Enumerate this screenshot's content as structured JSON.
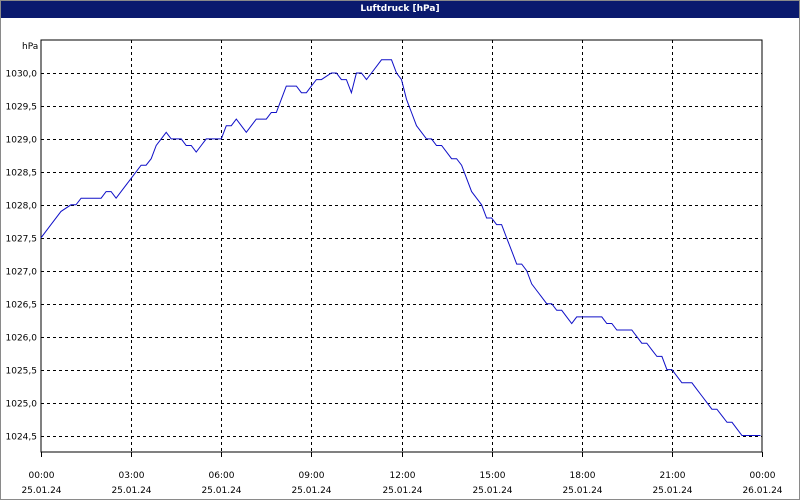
{
  "window": {
    "title": "Luftdruck [hPa]"
  },
  "chart_data": {
    "type": "line",
    "title": "Luftdruck [hPa]",
    "ylabel": "hPa",
    "xlabel": "",
    "ylim": [
      1024.25,
      1030.5
    ],
    "yticks": [
      1024.5,
      1025.0,
      1025.5,
      1026.0,
      1026.5,
      1027.0,
      1027.5,
      1028.0,
      1028.5,
      1029.0,
      1029.5,
      1030.0
    ],
    "ytick_labels": [
      "1024,5",
      "1025,0",
      "1025,5",
      "1026,0",
      "1026,5",
      "1027,0",
      "1027,5",
      "1028,0",
      "1028,5",
      "1029,0",
      "1029,5",
      "1030,0"
    ],
    "xlim": [
      "25.01.24 00:00",
      "26.01.24 00:00"
    ],
    "xticks": [
      {
        "time": "00:00",
        "date": "25.01.24"
      },
      {
        "time": "03:00",
        "date": "25.01.24"
      },
      {
        "time": "06:00",
        "date": "25.01.24"
      },
      {
        "time": "09:00",
        "date": "25.01.24"
      },
      {
        "time": "12:00",
        "date": "25.01.24"
      },
      {
        "time": "15:00",
        "date": "25.01.24"
      },
      {
        "time": "18:00",
        "date": "25.01.24"
      },
      {
        "time": "21:00",
        "date": "25.01.24"
      },
      {
        "time": "00:00",
        "date": "26.01.24"
      }
    ],
    "grid": true,
    "line_color": "#1010c8",
    "series": [
      {
        "x": [
          "00:00",
          "00:20",
          "00:40",
          "01:00",
          "01:10",
          "01:20",
          "01:40",
          "02:00",
          "02:10",
          "02:20",
          "02:30",
          "02:40",
          "03:00",
          "03:20",
          "03:30",
          "03:40",
          "03:50",
          "04:00",
          "04:10",
          "04:20",
          "04:40",
          "04:50",
          "05:00",
          "05:10",
          "05:20",
          "05:30",
          "05:40",
          "06:00",
          "06:10",
          "06:20",
          "06:30",
          "06:40",
          "06:50",
          "07:00",
          "07:10",
          "07:20",
          "07:30",
          "07:40",
          "07:50",
          "08:00",
          "08:10",
          "08:20",
          "08:30",
          "08:40",
          "08:50",
          "09:00",
          "09:10",
          "09:20",
          "09:40",
          "09:50",
          "10:00",
          "10:10",
          "10:20",
          "10:30",
          "10:40",
          "10:50",
          "11:00",
          "11:10",
          "11:20",
          "11:30",
          "11:40",
          "11:50",
          "12:00",
          "12:10",
          "12:20",
          "12:30",
          "12:40",
          "12:50",
          "13:00",
          "13:10",
          "13:20",
          "13:30",
          "13:40",
          "13:50",
          "14:00",
          "14:10",
          "14:20",
          "14:30",
          "14:40",
          "14:50",
          "15:00",
          "15:10",
          "15:20",
          "15:30",
          "15:40",
          "15:50",
          "16:00",
          "16:10",
          "16:20",
          "16:30",
          "16:40",
          "16:50",
          "17:00",
          "17:10",
          "17:20",
          "17:30",
          "17:40",
          "17:50",
          "18:00",
          "18:10",
          "18:20",
          "18:30",
          "18:40",
          "18:50",
          "19:00",
          "19:10",
          "19:20",
          "19:30",
          "19:40",
          "19:50",
          "20:00",
          "20:10",
          "20:20",
          "20:30",
          "20:40",
          "20:50",
          "21:00",
          "21:10",
          "21:20",
          "21:30",
          "21:40",
          "21:50",
          "22:00",
          "22:10",
          "22:20",
          "22:30",
          "22:40",
          "22:50",
          "23:00",
          "23:10",
          "23:20",
          "23:30",
          "23:40",
          "23:50"
        ],
        "values": [
          1027.5,
          1027.7,
          1027.9,
          1028.0,
          1028.0,
          1028.1,
          1028.1,
          1028.1,
          1028.2,
          1028.2,
          1028.1,
          1028.2,
          1028.4,
          1028.6,
          1028.6,
          1028.7,
          1028.9,
          1029.0,
          1029.1,
          1029.0,
          1029.0,
          1028.9,
          1028.9,
          1028.8,
          1028.9,
          1029.0,
          1029.0,
          1029.0,
          1029.2,
          1029.2,
          1029.3,
          1029.2,
          1029.1,
          1029.2,
          1029.3,
          1029.3,
          1029.3,
          1029.4,
          1029.4,
          1029.6,
          1029.8,
          1029.8,
          1029.8,
          1029.7,
          1029.7,
          1029.8,
          1029.9,
          1029.9,
          1030.0,
          1030.0,
          1029.9,
          1029.9,
          1029.7,
          1030.0,
          1030.0,
          1029.9,
          1030.0,
          1030.1,
          1030.2,
          1030.2,
          1030.2,
          1030.0,
          1029.9,
          1029.6,
          1029.4,
          1029.2,
          1029.1,
          1029.0,
          1029.0,
          1028.9,
          1028.9,
          1028.8,
          1028.7,
          1028.7,
          1028.6,
          1028.4,
          1028.2,
          1028.1,
          1028.0,
          1027.8,
          1027.8,
          1027.7,
          1027.7,
          1027.5,
          1027.3,
          1027.1,
          1027.1,
          1027.0,
          1026.8,
          1026.7,
          1026.6,
          1026.5,
          1026.5,
          1026.4,
          1026.4,
          1026.3,
          1026.2,
          1026.3,
          1026.3,
          1026.3,
          1026.3,
          1026.3,
          1026.3,
          1026.2,
          1026.2,
          1026.1,
          1026.1,
          1026.1,
          1026.1,
          1026.0,
          1025.9,
          1025.9,
          1025.8,
          1025.7,
          1025.7,
          1025.5,
          1025.5,
          1025.4,
          1025.3,
          1025.3,
          1025.3,
          1025.2,
          1025.1,
          1025.0,
          1024.9,
          1024.9,
          1024.8,
          1024.7,
          1024.7,
          1024.6,
          1024.5,
          1024.5,
          1024.5,
          1024.5
        ]
      }
    ]
  }
}
